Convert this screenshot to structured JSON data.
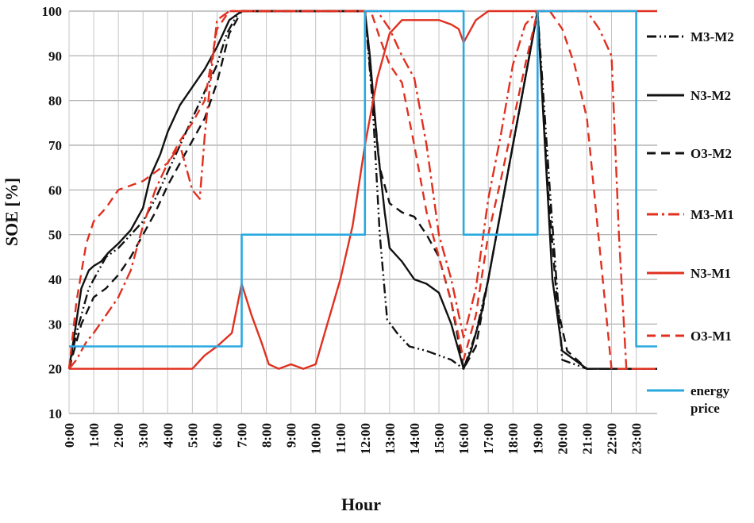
{
  "chart_data": {
    "type": "line",
    "title": "",
    "xlabel": "Hour",
    "ylabel": "SOE [%]",
    "ylim": [
      10,
      100
    ],
    "yticks": [
      10,
      20,
      30,
      40,
      50,
      60,
      70,
      80,
      90,
      100
    ],
    "xlim": [
      0,
      23.85
    ],
    "xtick_labels": [
      "0:00",
      "1:00",
      "2:00",
      "3:00",
      "4:00",
      "5:00",
      "6:00",
      "7:00",
      "8:00",
      "9:00",
      "10:00",
      "11:00",
      "12:00",
      "13:00",
      "14:00",
      "15:00",
      "16:00",
      "17:00",
      "18:00",
      "19:00",
      "20:00",
      "21:00",
      "22:00",
      "23:00"
    ],
    "grid": "horizontal",
    "legend_position": "right",
    "series": [
      {
        "name": "M3-M2",
        "color": "#111111",
        "dash": "dashdotdot",
        "x": [
          0,
          0.3,
          0.8,
          1,
          1.2,
          1.5,
          2,
          2.5,
          3,
          3.5,
          4,
          4.5,
          5,
          5.5,
          6,
          6.4,
          6.8,
          7,
          8,
          9,
          10,
          11,
          12,
          12.3,
          12.6,
          12.9,
          13.3,
          13.8,
          14.5,
          15,
          15.5,
          16,
          16.5,
          17,
          17.5,
          18,
          18.5,
          19,
          19.5,
          20,
          20.5,
          21,
          22,
          23,
          23.85
        ],
        "y": [
          20,
          28,
          38,
          40,
          42,
          45,
          47,
          50,
          53,
          58,
          64,
          70,
          76,
          82,
          88,
          95,
          99,
          100,
          100,
          100,
          100,
          100,
          100,
          80,
          50,
          31,
          28,
          25,
          24,
          23,
          22,
          20,
          28,
          40,
          55,
          70,
          85,
          100,
          60,
          22,
          21,
          20,
          20,
          20,
          20
        ]
      },
      {
        "name": "N3-M2",
        "color": "#111111",
        "dash": "solid",
        "x": [
          0,
          0.2,
          0.5,
          0.8,
          1,
          1.3,
          1.6,
          2,
          2.5,
          3,
          3.3,
          3.7,
          4,
          4.5,
          5,
          5.5,
          6,
          6.5,
          7,
          8,
          9,
          10,
          11,
          12,
          12.2,
          12.5,
          12.8,
          13,
          13.5,
          14,
          14.5,
          15,
          15.5,
          16,
          16.3,
          16.7,
          17,
          17.5,
          18,
          18.5,
          19,
          19.3,
          19.6,
          20,
          20.5,
          21,
          22,
          23,
          23.85
        ],
        "y": [
          20,
          27,
          38,
          42,
          43,
          44,
          46,
          48,
          51,
          56,
          63,
          68,
          73,
          79,
          83,
          87,
          92,
          98,
          100,
          100,
          100,
          100,
          100,
          100,
          90,
          70,
          55,
          47,
          44,
          40,
          39,
          37,
          30,
          20,
          24,
          32,
          40,
          55,
          70,
          85,
          100,
          70,
          40,
          24,
          22,
          20,
          20,
          20,
          20
        ]
      },
      {
        "name": "O3-M2",
        "color": "#111111",
        "dash": "dashed",
        "x": [
          0,
          0.5,
          1,
          1.5,
          2,
          2.5,
          3,
          3.5,
          4,
          4.5,
          5,
          5.5,
          6,
          6.5,
          7,
          8,
          9,
          10,
          11,
          12,
          12.3,
          12.6,
          13,
          13.5,
          14,
          14.5,
          15,
          15.5,
          16,
          16.5,
          17,
          17.5,
          18,
          18.5,
          19,
          19.4,
          19.8,
          20.2,
          20.6,
          21,
          22,
          23,
          23.85
        ],
        "y": [
          20,
          30,
          36,
          38,
          41,
          45,
          50,
          55,
          61,
          66,
          71,
          76,
          84,
          95,
          100,
          100,
          100,
          100,
          100,
          100,
          82,
          65,
          57,
          55,
          54,
          50,
          45,
          35,
          20,
          25,
          40,
          55,
          70,
          85,
          100,
          62,
          34,
          24,
          22,
          20,
          20,
          20,
          20
        ]
      },
      {
        "name": "M3-M1",
        "color": "#e03020",
        "dash": "dashdot",
        "x": [
          0,
          0.3,
          0.7,
          1,
          1.5,
          2,
          2.5,
          3,
          3.5,
          4,
          4.5,
          5,
          5.3,
          5.5,
          5.8,
          6,
          6.5,
          7,
          8,
          9,
          10,
          11,
          12,
          12.5,
          13,
          13.5,
          14,
          14.5,
          15,
          15.5,
          16,
          16.5,
          17,
          17.5,
          18,
          18.5,
          19,
          19.5,
          20,
          20.5,
          21,
          21.5,
          22,
          22.3,
          22.6,
          23,
          23.85
        ],
        "y": [
          20,
          22,
          26,
          28,
          32,
          36,
          42,
          52,
          60,
          66,
          70,
          60,
          58,
          72,
          88,
          98,
          100,
          100,
          100,
          100,
          100,
          100,
          100,
          100,
          96,
          90,
          85,
          70,
          50,
          40,
          27,
          38,
          58,
          72,
          88,
          97,
          100,
          100,
          100,
          100,
          100,
          96,
          90,
          50,
          20,
          20,
          20
        ]
      },
      {
        "name": "N3-M1",
        "color": "#e03020",
        "dash": "solid",
        "x": [
          0,
          1,
          2,
          3,
          4,
          5,
          5.5,
          6,
          6.6,
          7,
          7.4,
          7.8,
          8.1,
          8.5,
          9,
          9.5,
          10,
          11,
          11.5,
          12,
          12.5,
          13,
          13.5,
          14,
          14.5,
          15,
          15.5,
          15.8,
          16,
          16.5,
          17,
          17.5,
          18,
          18.5,
          19,
          20,
          21,
          22,
          23,
          23.85
        ],
        "y": [
          20,
          20,
          20,
          20,
          20,
          20,
          23,
          25,
          28,
          39,
          32,
          26,
          21,
          20,
          21,
          20,
          21,
          40,
          52,
          70,
          85,
          95,
          98,
          98,
          98,
          98,
          97,
          96,
          93,
          98,
          100,
          100,
          100,
          100,
          100,
          100,
          100,
          100,
          100,
          100
        ]
      },
      {
        "name": "O3-M1",
        "color": "#e03020",
        "dash": "dashed",
        "x": [
          0,
          0.3,
          0.7,
          1,
          1.5,
          2,
          2.5,
          3,
          3.5,
          4,
          4.5,
          5,
          5.5,
          6,
          6.5,
          7,
          8,
          9,
          10,
          11,
          12,
          12.3,
          12.6,
          13,
          13.5,
          14,
          14.5,
          15,
          15.5,
          16,
          16.5,
          17,
          17.5,
          18,
          18.5,
          19,
          19.5,
          20,
          20.5,
          21,
          22,
          23,
          23.85
        ],
        "y": [
          20,
          35,
          48,
          53,
          56,
          60,
          61,
          62,
          64,
          66,
          71,
          75,
          80,
          96,
          100,
          100,
          100,
          100,
          100,
          100,
          100,
          99,
          94,
          88,
          84,
          70,
          55,
          45,
          35,
          22,
          32,
          50,
          62,
          75,
          88,
          100,
          100,
          96,
          88,
          76,
          20,
          20,
          20
        ]
      },
      {
        "name": "energy price",
        "color": "#2aa9e0",
        "dash": "solid",
        "x": [
          0,
          7,
          7,
          12,
          12,
          16,
          16,
          19,
          19,
          23,
          23,
          23.85
        ],
        "y": [
          25,
          25,
          50,
          50,
          100,
          100,
          50,
          50,
          100,
          100,
          25,
          25
        ]
      }
    ]
  }
}
